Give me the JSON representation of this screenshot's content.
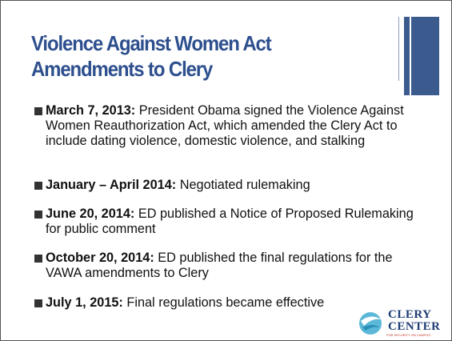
{
  "slide": {
    "title": [
      "Violence Against Women Act",
      "Amendments to Clery"
    ],
    "bullets": [
      {
        "lead": "March 7, 2013:",
        "text": " President Obama signed the Violence Against Women Reauthorization Act, which amended the Clery Act to include dating violence, domestic violence, and stalking"
      },
      {
        "lead": "January – April 2014:",
        "text": " Negotiated rulemaking"
      },
      {
        "lead": "June 20, 2014:",
        "text": " ED published a Notice of Proposed Rulemaking for public comment"
      },
      {
        "lead": "October 20, 2014:",
        "text": " ED published the final regulations for the VAWA amendments to Clery"
      },
      {
        "lead": "July 1, 2015:",
        "text": " Final regulations became effective"
      }
    ],
    "logo": {
      "line1": "CLERY",
      "line2": "CENTER",
      "tagline": "FOR SECURITY ON CAMPUS"
    }
  }
}
